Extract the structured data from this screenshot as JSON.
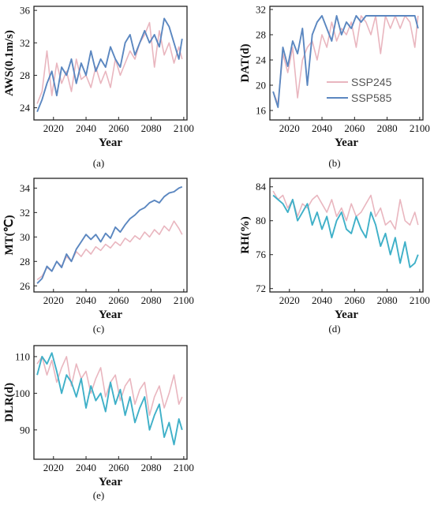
{
  "colors": {
    "ssp245": "#e9b6bf",
    "ssp585": "#5b87c0",
    "ssp585_rh_dlr": "#3fb0c8",
    "axis": "#222222"
  },
  "legend": {
    "ssp245": "SSP245",
    "ssp585": "SSP585"
  },
  "chart_data": [
    {
      "type": "line",
      "id": "a",
      "caption": "(a)",
      "ylabel": "AWS(0.1m/s)",
      "xlabel": "Year",
      "xlim": [
        2008,
        2102
      ],
      "ylim": [
        22.5,
        36.5
      ],
      "xticks": [
        2020,
        2040,
        2060,
        2080,
        2100
      ],
      "xtick_labels": [
        "2020",
        "2040",
        "2060",
        "2080",
        "2100"
      ],
      "yticks": [
        24,
        28,
        32,
        36
      ],
      "ytick_labels": [
        "24",
        "28",
        "32",
        "36"
      ],
      "series": [
        {
          "name": "SSP245",
          "x": [
            2010,
            2013,
            2016,
            2019,
            2022,
            2025,
            2028,
            2031,
            2034,
            2037,
            2040,
            2043,
            2046,
            2049,
            2052,
            2055,
            2058,
            2061,
            2064,
            2067,
            2070,
            2073,
            2076,
            2079,
            2082,
            2085,
            2088,
            2091,
            2094,
            2097,
            2099
          ],
          "y": [
            24.5,
            26,
            31,
            25.5,
            29.5,
            27,
            28.5,
            26,
            30,
            27.5,
            28,
            26.5,
            29,
            27,
            28.5,
            26.5,
            30,
            28,
            29.5,
            31,
            30,
            32,
            33,
            34.5,
            29,
            33.5,
            30.5,
            32,
            29.5,
            31.5,
            30
          ]
        },
        {
          "name": "SSP585",
          "x": [
            2010,
            2013,
            2016,
            2019,
            2022,
            2025,
            2028,
            2031,
            2034,
            2037,
            2040,
            2043,
            2046,
            2049,
            2052,
            2055,
            2058,
            2061,
            2064,
            2067,
            2070,
            2073,
            2076,
            2079,
            2082,
            2085,
            2088,
            2091,
            2094,
            2097,
            2099
          ],
          "y": [
            23.5,
            25,
            27,
            28.5,
            25.5,
            29,
            28,
            30,
            27,
            29.5,
            28,
            31,
            28.5,
            30,
            29,
            31.5,
            30,
            29,
            32,
            33,
            30.5,
            32,
            33.5,
            32,
            33,
            31.5,
            35,
            34,
            32,
            30,
            32.5
          ]
        }
      ]
    },
    {
      "type": "line",
      "id": "b",
      "caption": "(b)",
      "ylabel": "DAT(d)",
      "xlabel": "Year",
      "xlim": [
        2008,
        2102
      ],
      "ylim": [
        14.5,
        32.5
      ],
      "xticks": [
        2020,
        2040,
        2060,
        2080,
        2100
      ],
      "xtick_labels": [
        "2020",
        "2040",
        "2060",
        "2080",
        "2100"
      ],
      "yticks": [
        16,
        20,
        24,
        28,
        32
      ],
      "ytick_labels": [
        "16",
        "20",
        "24",
        "28",
        "32"
      ],
      "series": [
        {
          "name": "SSP245",
          "x": [
            2010,
            2013,
            2016,
            2019,
            2022,
            2025,
            2028,
            2031,
            2034,
            2037,
            2040,
            2043,
            2046,
            2049,
            2052,
            2055,
            2058,
            2061,
            2064,
            2067,
            2070,
            2073,
            2076,
            2079,
            2082,
            2085,
            2088,
            2091,
            2094,
            2097,
            2099
          ],
          "y": [
            19,
            17,
            25,
            22,
            26,
            18,
            24,
            26,
            27,
            24,
            28,
            26,
            30,
            27,
            29,
            28,
            30,
            26,
            31,
            30,
            28,
            31,
            25,
            31,
            29,
            31,
            29,
            31,
            30,
            26,
            31
          ]
        },
        {
          "name": "SSP585",
          "x": [
            2010,
            2013,
            2016,
            2019,
            2022,
            2025,
            2028,
            2031,
            2034,
            2037,
            2040,
            2043,
            2046,
            2049,
            2052,
            2055,
            2058,
            2061,
            2064,
            2067,
            2070,
            2073,
            2076,
            2079,
            2082,
            2085,
            2088,
            2091,
            2094,
            2097,
            2099
          ],
          "y": [
            19,
            16.5,
            26,
            23,
            27,
            25,
            29,
            20,
            28,
            30,
            31,
            29,
            27,
            31,
            28,
            30,
            29,
            31,
            30,
            31,
            31,
            31,
            31,
            31,
            31,
            31,
            31,
            31,
            31,
            31,
            29
          ]
        }
      ]
    },
    {
      "type": "line",
      "id": "c",
      "caption": "(c)",
      "ylabel": "MT(℃)",
      "xlabel": "Year",
      "xlim": [
        2008,
        2102
      ],
      "ylim": [
        25.5,
        34.8
      ],
      "xticks": [
        2020,
        2040,
        2060,
        2080,
        2100
      ],
      "xtick_labels": [
        "2020",
        "2040",
        "2060",
        "2080",
        "2100"
      ],
      "yticks": [
        26,
        28,
        30,
        32,
        34
      ],
      "ytick_labels": [
        "26",
        "28",
        "30",
        "32",
        "34"
      ],
      "series": [
        {
          "name": "SSP245",
          "x": [
            2010,
            2013,
            2016,
            2019,
            2022,
            2025,
            2028,
            2031,
            2034,
            2037,
            2040,
            2043,
            2046,
            2049,
            2052,
            2055,
            2058,
            2061,
            2064,
            2067,
            2070,
            2073,
            2076,
            2079,
            2082,
            2085,
            2088,
            2091,
            2094,
            2097,
            2099
          ],
          "y": [
            26.5,
            26.8,
            27.5,
            27.2,
            28,
            27.6,
            28.4,
            28,
            28.8,
            28.4,
            29,
            28.6,
            29.2,
            28.9,
            29.4,
            29.1,
            29.6,
            29.3,
            29.9,
            29.6,
            30.1,
            29.8,
            30.4,
            30,
            30.6,
            30.2,
            30.9,
            30.5,
            31.3,
            30.7,
            30.2
          ]
        },
        {
          "name": "SSP585",
          "x": [
            2010,
            2013,
            2016,
            2019,
            2022,
            2025,
            2028,
            2031,
            2034,
            2037,
            2040,
            2043,
            2046,
            2049,
            2052,
            2055,
            2058,
            2061,
            2064,
            2067,
            2070,
            2073,
            2076,
            2079,
            2082,
            2085,
            2088,
            2091,
            2094,
            2097,
            2099
          ],
          "y": [
            26.2,
            26.6,
            27.6,
            27.2,
            28,
            27.5,
            28.6,
            28,
            29,
            29.6,
            30.2,
            29.8,
            30.2,
            29.6,
            30.3,
            29.9,
            30.8,
            30.4,
            31,
            31.5,
            31.8,
            32.2,
            32.4,
            32.8,
            33,
            32.8,
            33.3,
            33.6,
            33.7,
            34,
            34.1
          ]
        }
      ]
    },
    {
      "type": "line",
      "id": "d",
      "caption": "(d)",
      "ylabel": "RH(%)",
      "xlabel": "Year",
      "xlim": [
        2008,
        2102
      ],
      "ylim": [
        71.6,
        85
      ],
      "xticks": [
        2020,
        2040,
        2060,
        2080,
        2100
      ],
      "xtick_labels": [
        "2020",
        "2040",
        "2060",
        "2080",
        "2100"
      ],
      "yticks": [
        72,
        76,
        80,
        84
      ],
      "ytick_labels": [
        "72",
        "76",
        "80",
        "84"
      ],
      "series": [
        {
          "name": "SSP245",
          "x": [
            2010,
            2013,
            2016,
            2019,
            2022,
            2025,
            2028,
            2031,
            2034,
            2037,
            2040,
            2043,
            2046,
            2049,
            2052,
            2055,
            2058,
            2061,
            2064,
            2067,
            2070,
            2073,
            2076,
            2079,
            2082,
            2085,
            2088,
            2091,
            2094,
            2097,
            2099
          ],
          "y": [
            83.5,
            82.5,
            83,
            81.5,
            82.5,
            80.5,
            82,
            81.5,
            82.5,
            83,
            82,
            81,
            82.5,
            80.5,
            81.5,
            80,
            82,
            80.5,
            81,
            82,
            83,
            80.5,
            81.5,
            79.5,
            80,
            79,
            82.5,
            80,
            79.5,
            81,
            79.5
          ]
        },
        {
          "name": "SSP585",
          "x": [
            2010,
            2013,
            2016,
            2019,
            2022,
            2025,
            2028,
            2031,
            2034,
            2037,
            2040,
            2043,
            2046,
            2049,
            2052,
            2055,
            2058,
            2061,
            2064,
            2067,
            2070,
            2073,
            2076,
            2079,
            2082,
            2085,
            2088,
            2091,
            2094,
            2097,
            2099
          ],
          "y": [
            83,
            82.5,
            82,
            81,
            82.5,
            80,
            81,
            82,
            79.5,
            81,
            79,
            80.5,
            78,
            80,
            81,
            79,
            78.5,
            80.5,
            79,
            78,
            81,
            79.5,
            77,
            78.5,
            76,
            78,
            75,
            77.5,
            74.5,
            75,
            76
          ]
        }
      ]
    },
    {
      "type": "line",
      "id": "e",
      "caption": "(e)",
      "ylabel": "DLR(d)",
      "xlabel": "Year",
      "xlim": [
        2008,
        2102
      ],
      "ylim": [
        82,
        113
      ],
      "xticks": [
        2020,
        2040,
        2060,
        2080,
        2100
      ],
      "xtick_labels": [
        "2020",
        "2040",
        "2060",
        "2080",
        "2100"
      ],
      "yticks": [
        90,
        100,
        110
      ],
      "ytick_labels": [
        "90",
        "100",
        "110"
      ],
      "series": [
        {
          "name": "SSP245",
          "x": [
            2010,
            2013,
            2016,
            2019,
            2022,
            2025,
            2028,
            2031,
            2034,
            2037,
            2040,
            2043,
            2046,
            2049,
            2052,
            2055,
            2058,
            2061,
            2064,
            2067,
            2070,
            2073,
            2076,
            2079,
            2082,
            2085,
            2088,
            2091,
            2094,
            2097,
            2099
          ],
          "y": [
            108,
            110,
            105,
            109,
            103,
            107,
            110,
            102,
            108,
            104,
            106,
            100,
            104,
            107,
            99,
            103,
            105,
            98,
            102,
            104,
            97,
            101,
            103,
            94,
            99,
            102,
            96,
            100,
            105,
            97,
            99
          ]
        },
        {
          "name": "SSP585",
          "x": [
            2010,
            2013,
            2016,
            2019,
            2022,
            2025,
            2028,
            2031,
            2034,
            2037,
            2040,
            2043,
            2046,
            2049,
            2052,
            2055,
            2058,
            2061,
            2064,
            2067,
            2070,
            2073,
            2076,
            2079,
            2082,
            2085,
            2088,
            2091,
            2094,
            2097,
            2099
          ],
          "y": [
            105,
            110,
            108,
            111,
            106,
            100,
            105,
            103,
            99,
            104,
            96,
            102,
            98,
            100,
            95,
            103,
            97,
            101,
            94,
            99,
            92,
            96,
            99,
            90,
            94,
            97,
            88,
            92,
            86,
            93,
            90
          ]
        }
      ]
    }
  ]
}
